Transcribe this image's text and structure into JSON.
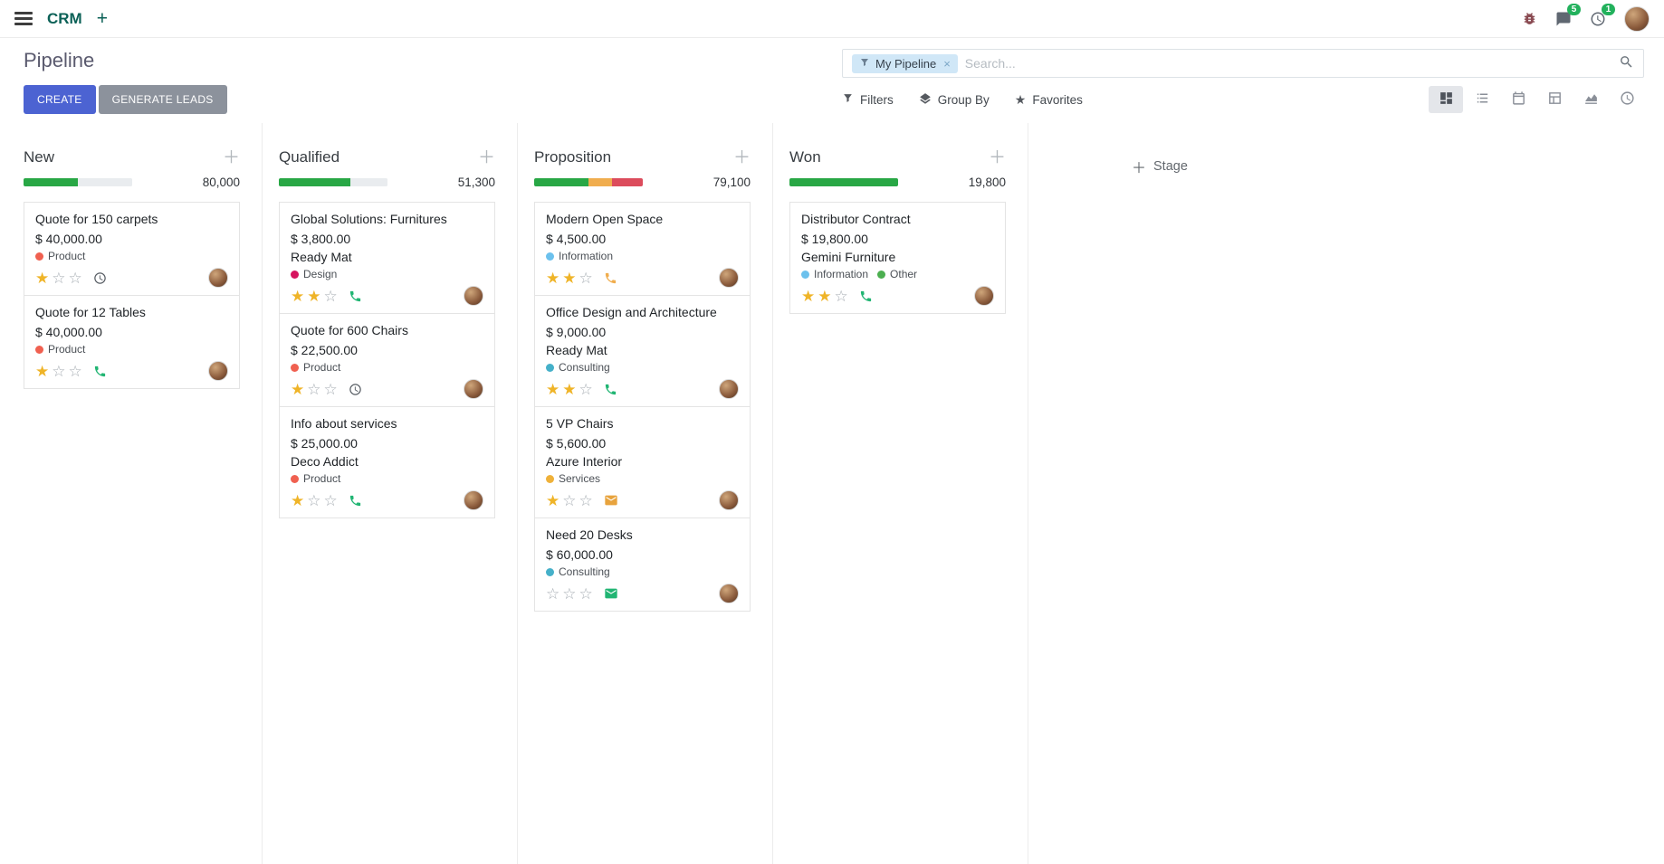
{
  "colors": {
    "primary_button": "#4c63d2",
    "secondary_button": "#8c929c",
    "badge": "#22b15c",
    "star_filled": "#efb428",
    "facet_bg": "#d0e7f7"
  },
  "navbar": {
    "app_name": "CRM",
    "messages_badge": "5",
    "activities_badge": "1"
  },
  "control_panel": {
    "title": "Pipeline",
    "buttons": {
      "create": "CREATE",
      "generate_leads": "GENERATE LEADS"
    },
    "search": {
      "facet_label": "My Pipeline",
      "facet_remove": "×",
      "placeholder": "Search..."
    },
    "menus": {
      "filters": "Filters",
      "group_by": "Group By",
      "favorites": "Favorites"
    }
  },
  "board": {
    "add_stage_label": "Stage",
    "columns": [
      {
        "name": "New",
        "total": "80,000",
        "progress": [
          {
            "color": "#28a745",
            "pct": 50
          },
          {
            "color": "#e9ecef",
            "pct": 50
          }
        ],
        "cards": [
          {
            "title": "Quote for 150 carpets",
            "amount": "$ 40,000.00",
            "partner": "",
            "tags": [
              {
                "label": "Product",
                "color": "#f06050"
              }
            ],
            "stars_filled": 1,
            "activity": {
              "type": "clock",
              "color": "#555b62"
            }
          },
          {
            "title": "Quote for 12 Tables",
            "amount": "$ 40,000.00",
            "partner": "",
            "tags": [
              {
                "label": "Product",
                "color": "#f06050"
              }
            ],
            "stars_filled": 1,
            "activity": {
              "type": "phone",
              "color": "#21b573"
            }
          }
        ]
      },
      {
        "name": "Qualified",
        "total": "51,300",
        "progress": [
          {
            "color": "#28a745",
            "pct": 66
          },
          {
            "color": "#e9ecef",
            "pct": 34
          }
        ],
        "cards": [
          {
            "title": "Global Solutions: Furnitures",
            "amount": "$ 3,800.00",
            "partner": "Ready Mat",
            "tags": [
              {
                "label": "Design",
                "color": "#d6145f"
              }
            ],
            "stars_filled": 2,
            "activity": {
              "type": "phone",
              "color": "#21b573"
            }
          },
          {
            "title": "Quote for 600 Chairs",
            "amount": "$ 22,500.00",
            "partner": "",
            "tags": [
              {
                "label": "Product",
                "color": "#f06050"
              }
            ],
            "stars_filled": 1,
            "activity": {
              "type": "clock",
              "color": "#555b62"
            }
          },
          {
            "title": "Info about services",
            "amount": "$ 25,000.00",
            "partner": "Deco Addict",
            "tags": [
              {
                "label": "Product",
                "color": "#f06050"
              }
            ],
            "stars_filled": 1,
            "activity": {
              "type": "phone",
              "color": "#21b573"
            }
          }
        ]
      },
      {
        "name": "Proposition",
        "total": "79,100",
        "progress": [
          {
            "color": "#28a745",
            "pct": 50
          },
          {
            "color": "#f0ad4e",
            "pct": 22
          },
          {
            "color": "#dc4c5c",
            "pct": 28
          }
        ],
        "cards": [
          {
            "title": "Modern Open Space",
            "amount": "$ 4,500.00",
            "partner": "",
            "tags": [
              {
                "label": "Information",
                "color": "#6cc1ed"
              }
            ],
            "stars_filled": 2,
            "activity": {
              "type": "phone",
              "color": "#f0ad4e"
            }
          },
          {
            "title": "Office Design and Architecture",
            "amount": "$ 9,000.00",
            "partner": "Ready Mat",
            "tags": [
              {
                "label": "Consulting",
                "color": "#45b0c9"
              }
            ],
            "stars_filled": 2,
            "activity": {
              "type": "phone",
              "color": "#21b573"
            }
          },
          {
            "title": "5 VP Chairs",
            "amount": "$ 5,600.00",
            "partner": "Azure Interior",
            "tags": [
              {
                "label": "Services",
                "color": "#efb139"
              }
            ],
            "stars_filled": 1,
            "activity": {
              "type": "envelope",
              "color": "#e8a33d"
            }
          },
          {
            "title": "Need 20 Desks",
            "amount": "$ 60,000.00",
            "partner": "",
            "tags": [
              {
                "label": "Consulting",
                "color": "#45b0c9"
              }
            ],
            "stars_filled": 0,
            "activity": {
              "type": "envelope",
              "color": "#21b573"
            }
          }
        ]
      },
      {
        "name": "Won",
        "total": "19,800",
        "progress": [
          {
            "color": "#28a745",
            "pct": 100
          }
        ],
        "cards": [
          {
            "title": "Distributor Contract",
            "amount": "$ 19,800.00",
            "partner": "Gemini Furniture",
            "tags": [
              {
                "label": "Information",
                "color": "#6cc1ed"
              },
              {
                "label": "Other",
                "color": "#4caf50"
              }
            ],
            "stars_filled": 2,
            "activity": {
              "type": "phone",
              "color": "#21b573"
            }
          }
        ]
      }
    ]
  }
}
